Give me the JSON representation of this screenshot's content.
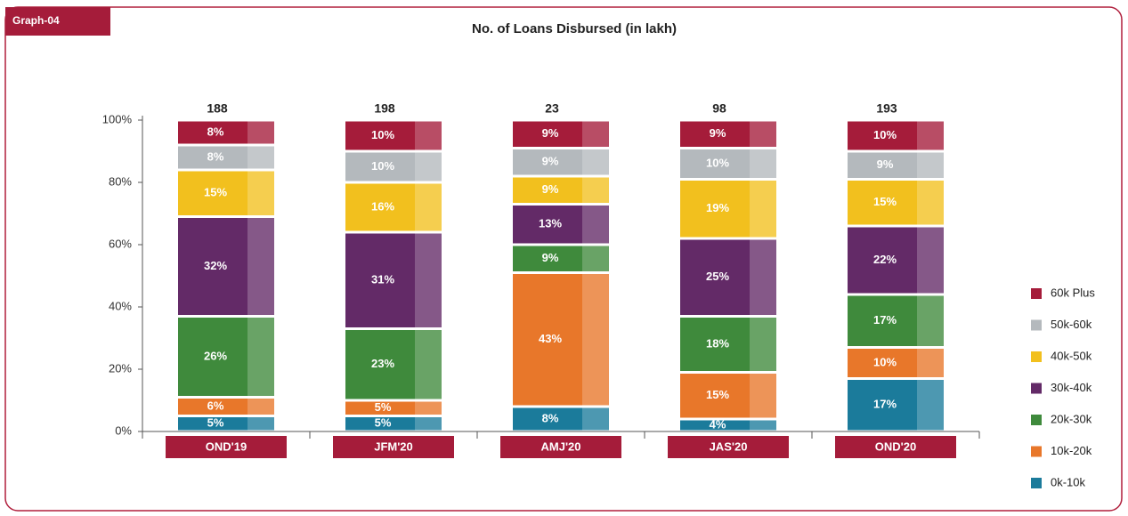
{
  "badge": "Graph-04",
  "chart_data": {
    "type": "stacked_bar_100",
    "title": "No. of Loans Disbursed (in lakh)",
    "categories": [
      "OND'19",
      "JFM'20",
      "AMJ'20",
      "JAS'20",
      "OND'20"
    ],
    "totals": [
      188,
      198,
      23,
      98,
      193
    ],
    "series": [
      {
        "name": "0k-10k",
        "color": "#1b7b9b",
        "values": [
          5,
          5,
          8,
          4,
          17
        ],
        "value_labels": [
          "5%",
          "5%",
          "8%",
          "4%",
          "17%"
        ]
      },
      {
        "name": "10k-20k",
        "color": "#e8772a",
        "values": [
          6,
          5,
          43,
          15,
          10
        ],
        "value_labels": [
          "6%",
          "5%",
          "43%",
          "15%",
          "10%"
        ]
      },
      {
        "name": "20k-30k",
        "color": "#3f8a3c",
        "values": [
          26,
          23,
          9,
          18,
          17
        ],
        "value_labels": [
          "26%",
          "23%",
          "9%",
          "18%",
          "17%"
        ]
      },
      {
        "name": "30k-40k",
        "color": "#632a67",
        "values": [
          32,
          31,
          13,
          25,
          22
        ],
        "value_labels": [
          "32%",
          "31%",
          "13%",
          "25%",
          "22%"
        ]
      },
      {
        "name": "40k-50k",
        "color": "#f2c01e",
        "values": [
          15,
          16,
          9,
          19,
          15
        ],
        "value_labels": [
          "15%",
          "16%",
          "9%",
          "19%",
          "15%"
        ]
      },
      {
        "name": "50k-60k",
        "color": "#b4b9bd",
        "values": [
          8,
          10,
          9,
          10,
          9
        ],
        "value_labels": [
          "8%",
          "10%",
          "9%",
          "10%",
          "9%"
        ]
      },
      {
        "name": "60k Plus",
        "color": "#a51c3a",
        "values": [
          8,
          10,
          9,
          9,
          10
        ],
        "value_labels": [
          "8%",
          "10%",
          "9%",
          "9%",
          "10%"
        ]
      }
    ],
    "ylim": [
      0,
      100
    ],
    "yticks": [
      {
        "value": 0,
        "label": "0%"
      },
      {
        "value": 20,
        "label": "20%"
      },
      {
        "value": 40,
        "label": "40%"
      },
      {
        "value": 60,
        "label": "60%"
      },
      {
        "value": 80,
        "label": "80%"
      },
      {
        "value": 100,
        "label": "100%"
      }
    ],
    "legend": "right"
  }
}
